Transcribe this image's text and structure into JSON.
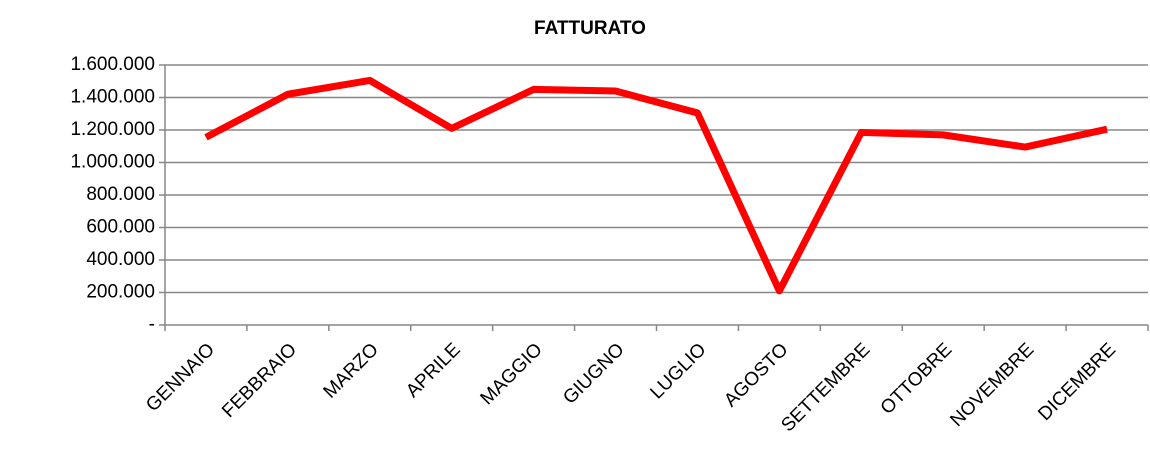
{
  "chart_data": {
    "type": "line",
    "title": "FATTURATO",
    "categories": [
      "GENNAIO",
      "FEBBRAIO",
      "MARZO",
      "APRILE",
      "MAGGIO",
      "GIUGNO",
      "LUGLIO",
      "AGOSTO",
      "SETTEMBRE",
      "OTTOBRE",
      "NOVEMBRE",
      "DICEMBRE"
    ],
    "series": [
      {
        "name": "FATTURATO",
        "color": "#ff0000",
        "values": [
          1155000,
          1420000,
          1505000,
          1210000,
          1450000,
          1440000,
          1305000,
          210000,
          1185000,
          1170000,
          1095000,
          1205000
        ]
      }
    ],
    "ylim": [
      0,
      1600000
    ],
    "yticks": [
      {
        "value": 0,
        "label": "-"
      },
      {
        "value": 200000,
        "label": "200.000"
      },
      {
        "value": 400000,
        "label": "400.000"
      },
      {
        "value": 600000,
        "label": "600.000"
      },
      {
        "value": 800000,
        "label": "800.000"
      },
      {
        "value": 1000000,
        "label": "1.000.000"
      },
      {
        "value": 1200000,
        "label": "1.200.000"
      },
      {
        "value": 1400000,
        "label": "1.400.000"
      },
      {
        "value": 1600000,
        "label": "1.600.000"
      }
    ],
    "grid": true
  }
}
